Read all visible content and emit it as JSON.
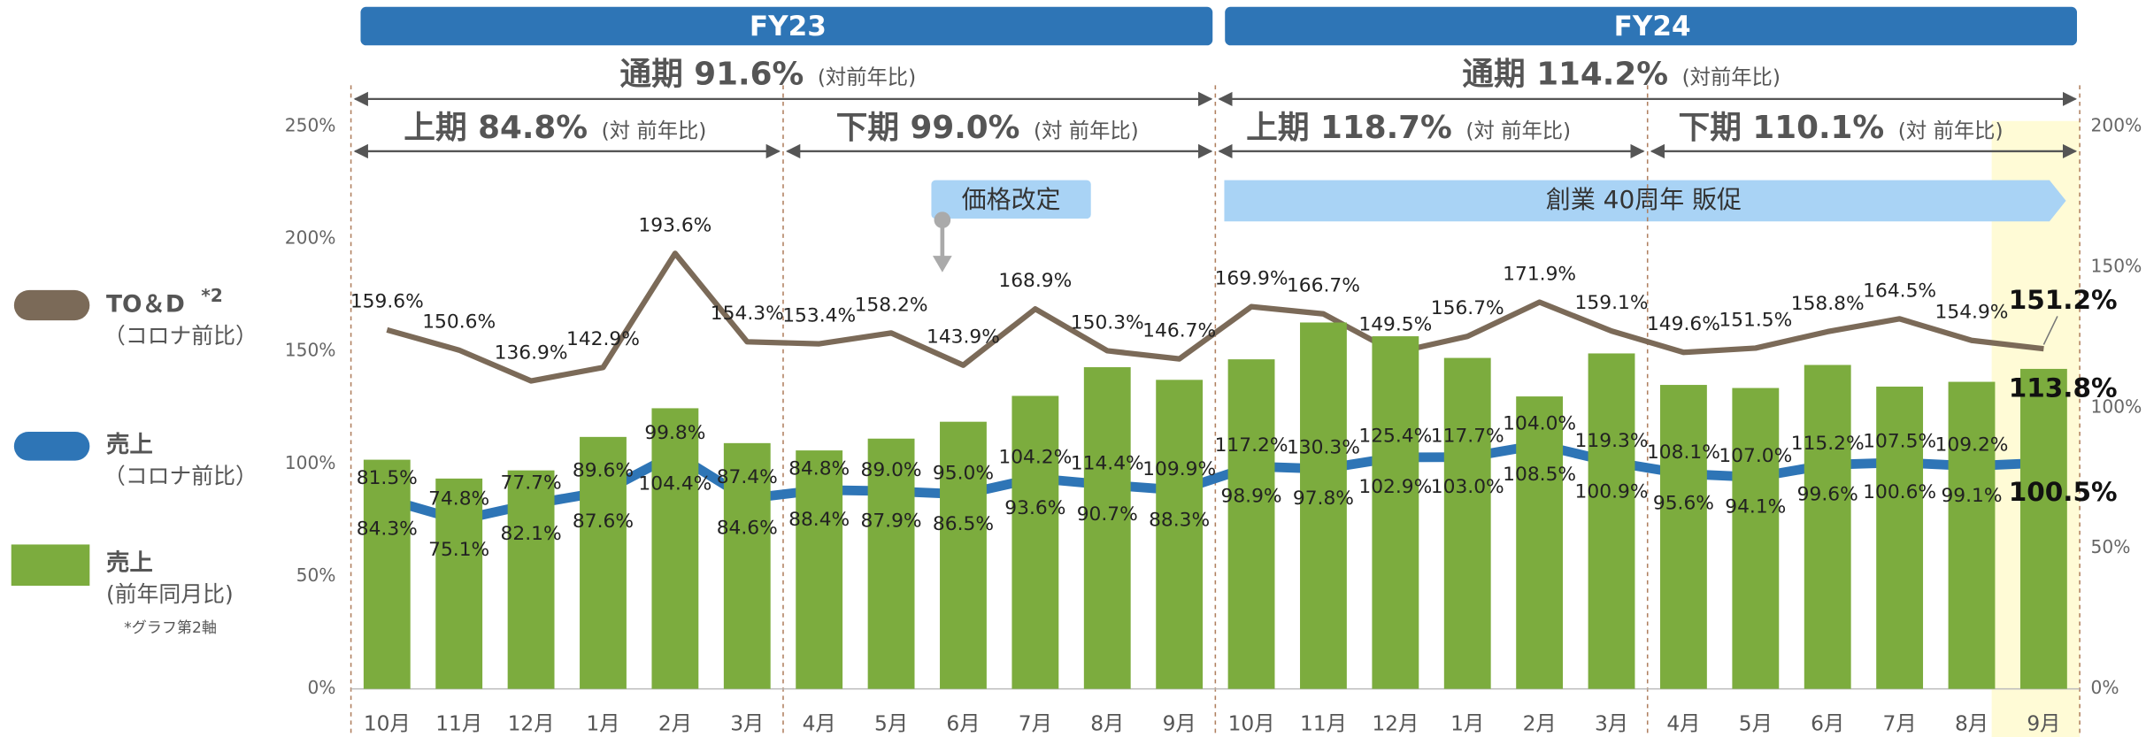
{
  "chart_data": {
    "type": "bar_line",
    "headers": [
      "FY23",
      "FY24"
    ],
    "periods": [
      {
        "label": "通期 91.6%",
        "note": "(対前年比)",
        "start": 0,
        "end": 12
      },
      {
        "label": "通期 114.2%",
        "note": "(対前年比)",
        "start": 12,
        "end": 24
      },
      {
        "label": "上期 84.8%",
        "note": "(対 前年比)",
        "start": 0,
        "end": 6
      },
      {
        "label": "下期 99.0%",
        "note": "(対 前年比)",
        "start": 6,
        "end": 12
      },
      {
        "label": "上期 118.7%",
        "note": "(対 前年比)",
        "start": 12,
        "end": 18
      },
      {
        "label": "下期 110.1%",
        "note": "(対 前年比)",
        "start": 18,
        "end": 24
      }
    ],
    "annotations": [
      "価格改定",
      "創業 40周年 販促"
    ],
    "categories": [
      "10月",
      "11月",
      "12月",
      "1月",
      "2月",
      "3月",
      "4月",
      "5月",
      "6月",
      "7月",
      "8月",
      "9月",
      "10月",
      "11月",
      "12月",
      "1月",
      "2月",
      "3月",
      "4月",
      "5月",
      "6月",
      "7月",
      "8月",
      "9月"
    ],
    "series": [
      {
        "name": "TO＆D",
        "name_note": "*2",
        "subtitle": "（コロナ前比）",
        "type": "line",
        "color": "#7b6a58",
        "values": [
          159.6,
          150.6,
          136.9,
          142.9,
          193.6,
          154.3,
          153.4,
          158.2,
          143.9,
          168.9,
          150.3,
          146.7,
          169.9,
          166.7,
          149.5,
          156.7,
          171.9,
          159.1,
          149.6,
          151.5,
          158.8,
          164.5,
          154.9,
          151.2
        ],
        "value_labels": [
          "159.6%",
          "150.6%",
          "136.9%",
          "142.9%",
          "193.6%",
          "154.3%",
          "153.4%",
          "158.2%",
          "143.9%",
          "168.9%",
          "150.3%",
          "146.7%",
          "169.9%",
          "166.7%",
          "149.5%",
          "156.7%",
          "171.9%",
          "159.1%",
          "149.6%",
          "151.5%",
          "158.8%",
          "164.5%",
          "154.9%",
          "151.2%"
        ]
      },
      {
        "name": "売上",
        "subtitle": "（コロナ前比）",
        "type": "line",
        "color": "#2e75b6",
        "values": [
          84.3,
          75.1,
          82.1,
          87.6,
          104.4,
          84.6,
          88.4,
          87.9,
          86.5,
          93.6,
          90.7,
          88.3,
          98.9,
          97.8,
          102.9,
          103.0,
          108.5,
          100.9,
          95.6,
          94.1,
          99.6,
          100.6,
          99.1,
          100.5
        ],
        "value_labels": [
          "84.3%",
          "75.1%",
          "82.1%",
          "87.6%",
          "104.4%",
          "84.6%",
          "88.4%",
          "87.9%",
          "86.5%",
          "93.6%",
          "90.7%",
          "88.3%",
          "98.9%",
          "97.8%",
          "102.9%",
          "103.0%",
          "108.5%",
          "100.9%",
          "95.6%",
          "94.1%",
          "99.6%",
          "100.6%",
          "99.1%",
          "100.5%"
        ]
      },
      {
        "name": "売上",
        "subtitle": "(前年同月比)",
        "note": "*グラフ第2軸",
        "type": "bar",
        "axis": "y2",
        "color": "#7cac3e",
        "values": [
          81.5,
          74.8,
          77.7,
          89.6,
          99.8,
          87.4,
          84.8,
          89.0,
          95.0,
          104.2,
          114.4,
          109.9,
          117.2,
          130.3,
          125.4,
          117.7,
          104.0,
          119.3,
          108.1,
          107.0,
          115.2,
          107.5,
          109.2,
          113.8
        ],
        "value_labels": [
          "81.5%",
          "74.8%",
          "77.7%",
          "89.6%",
          "99.8%",
          "87.4%",
          "84.8%",
          "89.0%",
          "95.0%",
          "104.2%",
          "114.4%",
          "109.9%",
          "117.2%",
          "130.3%",
          "125.4%",
          "117.7%",
          "104.0%",
          "119.3%",
          "108.1%",
          "107.0%",
          "115.2%",
          "107.5%",
          "109.2%",
          "113.8%"
        ]
      }
    ],
    "ylim": [
      0,
      250
    ],
    "yticks": [
      {
        "value": 0,
        "label": "0%"
      },
      {
        "value": 50,
        "label": "50%"
      },
      {
        "value": 100,
        "label": "100%"
      },
      {
        "value": 150,
        "label": "150%"
      },
      {
        "value": 200,
        "label": "200%"
      },
      {
        "value": 250,
        "label": "250%"
      }
    ],
    "y2lim": [
      0,
      200
    ],
    "y2ticks": [
      {
        "value": 0,
        "label": "0%"
      },
      {
        "value": 50,
        "label": "50%"
      },
      {
        "value": 100,
        "label": "100%"
      },
      {
        "value": 150,
        "label": "150%"
      },
      {
        "value": 200,
        "label": "200%"
      }
    ]
  }
}
